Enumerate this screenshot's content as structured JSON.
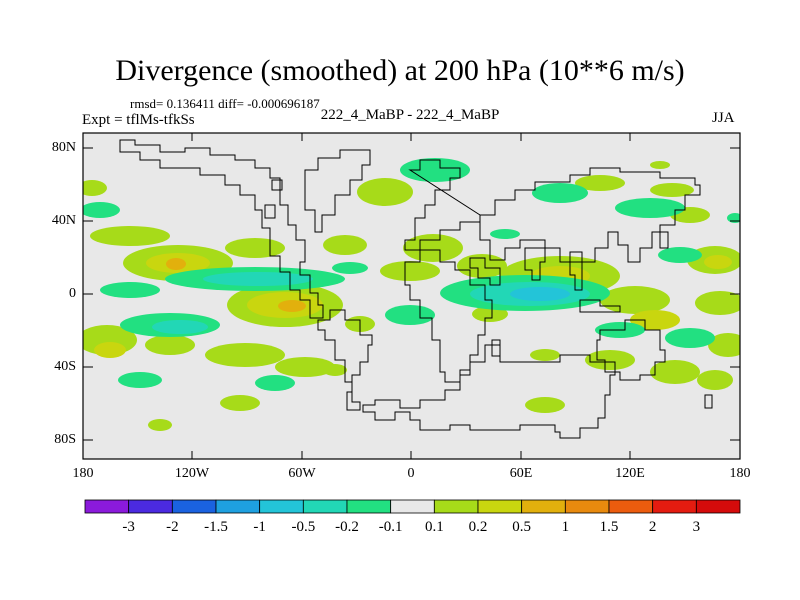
{
  "figure": {
    "title": "Divergence (smoothed) at 200 hPa (10**6 m/s)",
    "stats": "rmsd= 0.136411 diff= -0.000696187",
    "experiment": "Expt = tflMs-tfkSs",
    "center_label": "222_4_MaBP - 222_4_MaBP",
    "season": "JJA"
  },
  "axes": {
    "x_ticks": [
      "180",
      "120W",
      "60W",
      "0",
      "60E",
      "120E",
      "180"
    ],
    "y_ticks": [
      "80N",
      "40N",
      "0",
      "40S",
      "80S"
    ]
  },
  "colorbar": {
    "labels": [
      "-3",
      "-2",
      "-1.5",
      "-1",
      "-0.5",
      "-0.2",
      "-0.1",
      "0.1",
      "0.2",
      "0.5",
      "1",
      "1.5",
      "2",
      "3"
    ],
    "colors": [
      "#8b1adb",
      "#4b2ae0",
      "#1a62e0",
      "#1ea0e0",
      "#23c4d8",
      "#22d7b6",
      "#22e081",
      "#e8e8e8",
      "#a7db19",
      "#c9d60f",
      "#e2b00d",
      "#e88a0e",
      "#ec5c0e",
      "#e41c10",
      "#d50b0b"
    ]
  },
  "map_colors": {
    "background": "#e8e8e8",
    "neg_weak": "#22e081",
    "neg_mid": "#22d7b6",
    "neg_strong": "#23c4d8",
    "neg_core": "#1ea0e0",
    "pos_weak": "#a7db19",
    "pos_mid": "#c9d60f",
    "pos_strong": "#e2b00d",
    "pos_core": "#e8a070"
  }
}
